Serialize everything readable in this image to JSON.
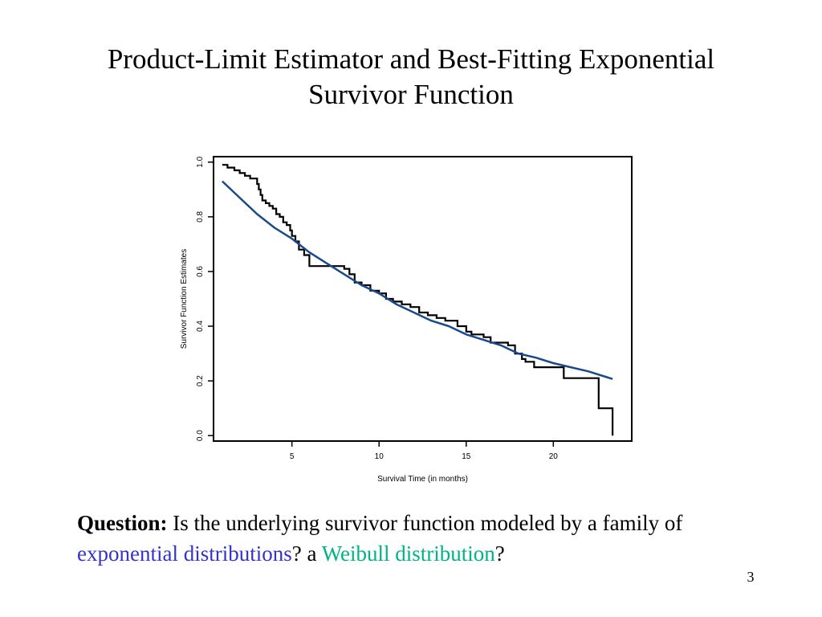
{
  "slide": {
    "title_line1": "Product-Limit Estimator and Best-Fitting Exponential",
    "title_line2": "Survivor Function",
    "question": {
      "label": "Question:",
      "text1": " Is the underlying survivor function modeled by a family of ",
      "link1": "exponential distributions",
      "text2": "? a ",
      "link2": "Weibull distribution",
      "text3": "?"
    },
    "page_number": "3"
  },
  "colors": {
    "link1": "#3333cc",
    "link2": "#00b386",
    "kaplan_meier": "#000000",
    "exponential_fit": "#1a4a8a"
  },
  "chart_data": {
    "type": "line",
    "title": "",
    "xlabel": "Survival Time (in months)",
    "ylabel": "Survivor Function Estimates",
    "xlim": [
      0.5,
      24.5
    ],
    "ylim": [
      -0.02,
      1.02
    ],
    "x_ticks": [
      5,
      10,
      15,
      20
    ],
    "y_ticks": [
      0.0,
      0.2,
      0.4,
      0.6,
      0.8,
      1.0
    ],
    "y_tick_labels": [
      "0.0",
      "0.2",
      "0.4",
      "0.6",
      "0.8",
      "1.0"
    ],
    "grid": false,
    "legend": "none",
    "series": [
      {
        "kind": "step",
        "color": "#000000",
        "x": [
          1.0,
          1.3,
          1.7,
          2.0,
          2.3,
          2.6,
          3.0,
          3.1,
          3.2,
          3.3,
          3.5,
          3.7,
          3.9,
          4.1,
          4.3,
          4.5,
          4.7,
          4.9,
          5.0,
          5.2,
          5.4,
          5.7,
          6.0,
          8.0,
          8.3,
          8.6,
          9.0,
          9.5,
          10.0,
          10.4,
          10.8,
          11.3,
          11.8,
          12.3,
          12.8,
          13.3,
          13.8,
          14.5,
          15.0,
          15.3,
          16.0,
          16.4,
          17.4,
          17.8,
          18.2,
          18.4,
          18.9,
          20.6,
          22.6,
          23.4,
          23.4
        ],
        "y": [
          0.99,
          0.98,
          0.97,
          0.96,
          0.95,
          0.94,
          0.92,
          0.9,
          0.88,
          0.86,
          0.85,
          0.84,
          0.83,
          0.81,
          0.8,
          0.78,
          0.77,
          0.75,
          0.73,
          0.71,
          0.68,
          0.66,
          0.62,
          0.61,
          0.59,
          0.56,
          0.55,
          0.53,
          0.52,
          0.5,
          0.49,
          0.48,
          0.47,
          0.45,
          0.44,
          0.43,
          0.42,
          0.4,
          0.38,
          0.37,
          0.36,
          0.34,
          0.33,
          0.3,
          0.28,
          0.27,
          0.25,
          0.21,
          0.1,
          0.1,
          0.0
        ]
      },
      {
        "kind": "smooth",
        "color": "#1a4a8a",
        "x": [
          1.0,
          2.0,
          3.0,
          4.0,
          5.0,
          6.0,
          7.0,
          8.0,
          9.0,
          10.0,
          11.0,
          12.0,
          13.0,
          14.0,
          15.0,
          16.0,
          17.0,
          18.0,
          19.0,
          20.0,
          21.0,
          22.0,
          23.0,
          23.4
        ],
        "y": [
          0.93,
          0.87,
          0.81,
          0.76,
          0.72,
          0.67,
          0.63,
          0.59,
          0.55,
          0.52,
          0.48,
          0.45,
          0.42,
          0.4,
          0.37,
          0.35,
          0.33,
          0.3,
          0.285,
          0.265,
          0.25,
          0.235,
          0.215,
          0.207
        ]
      }
    ]
  }
}
